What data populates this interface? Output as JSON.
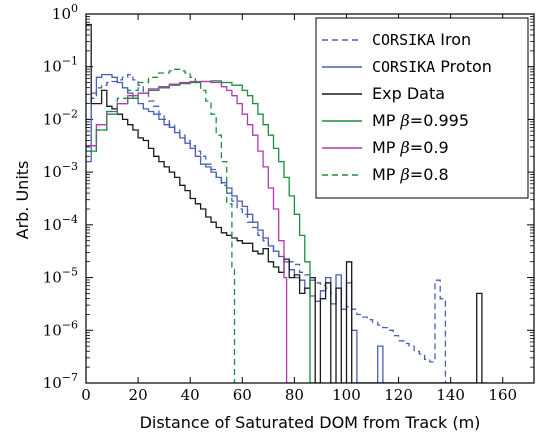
{
  "chart_data": {
    "type": "line",
    "xlabel": "Distance of Saturated DOM from Track (m)",
    "ylabel": "Arb. Units",
    "xlim": [
      0,
      172
    ],
    "ylim_log10": [
      -7,
      0
    ],
    "x_ticks": [
      {
        "value": 0,
        "label": "0"
      },
      {
        "value": 20,
        "label": "20"
      },
      {
        "value": 40,
        "label": "40"
      },
      {
        "value": 60,
        "label": "60"
      },
      {
        "value": 80,
        "label": "80"
      },
      {
        "value": 100,
        "label": "100"
      },
      {
        "value": 120,
        "label": "120"
      },
      {
        "value": 140,
        "label": "140"
      },
      {
        "value": 160,
        "label": "160"
      }
    ],
    "y_ticks": [
      {
        "value": 0,
        "base": "10",
        "exp": "0"
      },
      {
        "value": -1,
        "base": "10",
        "exp": "−1"
      },
      {
        "value": -2,
        "base": "10",
        "exp": "−2"
      },
      {
        "value": -3,
        "base": "10",
        "exp": "−3"
      },
      {
        "value": -4,
        "base": "10",
        "exp": "−4"
      },
      {
        "value": -5,
        "base": "10",
        "exp": "−5"
      },
      {
        "value": -6,
        "base": "10",
        "exp": "−6"
      },
      {
        "value": -7,
        "base": "10",
        "exp": "−7"
      }
    ],
    "legend_position": "top-right",
    "series": [
      {
        "name_mono": "CORSIKA",
        "name_rest": " Iron",
        "color": "#4a5fb4",
        "dash": "dashed",
        "points": [
          [
            0,
            -2.5
          ],
          [
            2,
            -1.6
          ],
          [
            4,
            -1.4
          ],
          [
            6,
            -1.35
          ],
          [
            8,
            -1.3
          ],
          [
            10,
            -1.28
          ],
          [
            12,
            -1.25
          ],
          [
            14,
            -1.2
          ],
          [
            16,
            -1.15
          ],
          [
            18,
            -1.25
          ],
          [
            20,
            -1.35
          ],
          [
            22,
            -1.5
          ],
          [
            24,
            -1.65
          ],
          [
            26,
            -1.75
          ],
          [
            28,
            -1.9
          ],
          [
            30,
            -2.0
          ],
          [
            32,
            -2.1
          ],
          [
            34,
            -2.2
          ],
          [
            36,
            -2.3
          ],
          [
            38,
            -2.4
          ],
          [
            40,
            -2.5
          ],
          [
            42,
            -2.6
          ],
          [
            44,
            -2.7
          ],
          [
            46,
            -2.85
          ],
          [
            48,
            -2.95
          ],
          [
            50,
            -3.1
          ],
          [
            52,
            -3.25
          ],
          [
            54,
            -3.4
          ],
          [
            56,
            -3.55
          ],
          [
            58,
            -3.7
          ],
          [
            60,
            -3.8
          ],
          [
            62,
            -3.95
          ],
          [
            64,
            -4.05
          ],
          [
            66,
            -4.2
          ],
          [
            68,
            -4.3
          ],
          [
            70,
            -4.4
          ],
          [
            72,
            -4.5
          ],
          [
            74,
            -4.6
          ],
          [
            76,
            -4.65
          ],
          [
            78,
            -4.7
          ],
          [
            80,
            -4.75
          ],
          [
            82,
            -4.9
          ],
          [
            84,
            -4.95
          ],
          [
            86,
            -5.05
          ],
          [
            88,
            -5.1
          ],
          [
            90,
            -5.15
          ],
          [
            92,
            -5.2
          ],
          [
            94,
            -5.3
          ],
          [
            96,
            -5.4
          ],
          [
            98,
            -5.5
          ],
          [
            100,
            -5.55
          ],
          [
            102,
            -5.6
          ],
          [
            104,
            -5.7
          ],
          [
            106,
            -5.75
          ],
          [
            108,
            -5.8
          ],
          [
            110,
            -5.85
          ],
          [
            112,
            -5.9
          ],
          [
            114,
            -5.95
          ],
          [
            116,
            -6.0
          ],
          [
            118,
            -6.1
          ],
          [
            120,
            -6.2
          ],
          [
            122,
            -6.25
          ],
          [
            124,
            -6.3
          ],
          [
            126,
            -6.4
          ],
          [
            128,
            -6.45
          ],
          [
            130,
            -6.55
          ],
          [
            132,
            -6.6
          ],
          [
            134,
            -5.05
          ],
          [
            136,
            -5.4
          ],
          [
            138,
            -7.0
          ]
        ]
      },
      {
        "name_mono": "CORSIKA",
        "name_rest": " Proton",
        "color": "#4a5fb4",
        "dash": "solid",
        "points": [
          [
            0,
            -2.8
          ],
          [
            2,
            -1.5
          ],
          [
            4,
            -1.2
          ],
          [
            6,
            -1.15
          ],
          [
            8,
            -1.15
          ],
          [
            10,
            -1.2
          ],
          [
            12,
            -1.3
          ],
          [
            14,
            -1.4
          ],
          [
            16,
            -1.5
          ],
          [
            18,
            -1.6
          ],
          [
            20,
            -1.7
          ],
          [
            22,
            -1.8
          ],
          [
            24,
            -1.85
          ],
          [
            26,
            -1.9
          ],
          [
            28,
            -2.0
          ],
          [
            30,
            -2.1
          ],
          [
            32,
            -2.15
          ],
          [
            34,
            -2.25
          ],
          [
            36,
            -2.35
          ],
          [
            38,
            -2.45
          ],
          [
            40,
            -2.55
          ],
          [
            42,
            -2.7
          ],
          [
            44,
            -2.85
          ],
          [
            46,
            -2.9
          ],
          [
            48,
            -3.0
          ],
          [
            50,
            -3.1
          ],
          [
            52,
            -3.2
          ],
          [
            54,
            -3.3
          ],
          [
            56,
            -3.45
          ],
          [
            58,
            -3.55
          ],
          [
            60,
            -3.65
          ],
          [
            62,
            -3.8
          ],
          [
            64,
            -3.95
          ],
          [
            66,
            -4.1
          ],
          [
            68,
            -4.25
          ],
          [
            70,
            -4.4
          ],
          [
            72,
            -4.5
          ],
          [
            74,
            -4.6
          ],
          [
            76,
            -4.7
          ],
          [
            78,
            -4.85
          ],
          [
            80,
            -5.0
          ],
          [
            82,
            -5.05
          ],
          [
            84,
            -5.2
          ],
          [
            86,
            -5.35
          ],
          [
            88,
            -5.45
          ],
          [
            90,
            -5.25
          ],
          [
            92,
            -5.0
          ],
          [
            94,
            -5.5
          ],
          [
            96,
            -4.95
          ],
          [
            98,
            -5.6
          ],
          [
            100,
            -5.1
          ],
          [
            102,
            -6.0
          ],
          [
            104,
            -7.0
          ],
          [
            110,
            -7.0
          ],
          [
            112,
            -6.3
          ],
          [
            114,
            -7.0
          ]
        ]
      },
      {
        "name_mono": "",
        "name_rest": "Exp Data",
        "color": "#1a1a1a",
        "dash": "solid",
        "points": [
          [
            0,
            -0.2
          ],
          [
            2,
            -1.7
          ],
          [
            4,
            -1.7
          ],
          [
            6,
            -1.45
          ],
          [
            8,
            -1.75
          ],
          [
            10,
            -1.8
          ],
          [
            12,
            -1.9
          ],
          [
            14,
            -2.0
          ],
          [
            16,
            -2.1
          ],
          [
            18,
            -2.2
          ],
          [
            20,
            -2.35
          ],
          [
            22,
            -2.4
          ],
          [
            24,
            -2.55
          ],
          [
            26,
            -2.7
          ],
          [
            28,
            -2.8
          ],
          [
            30,
            -2.9
          ],
          [
            32,
            -3.0
          ],
          [
            34,
            -3.1
          ],
          [
            36,
            -3.25
          ],
          [
            38,
            -3.35
          ],
          [
            40,
            -3.5
          ],
          [
            42,
            -3.6
          ],
          [
            44,
            -3.7
          ],
          [
            46,
            -3.85
          ],
          [
            48,
            -3.95
          ],
          [
            50,
            -4.05
          ],
          [
            52,
            -4.15
          ],
          [
            54,
            -4.2
          ],
          [
            56,
            -4.25
          ],
          [
            58,
            -4.3
          ],
          [
            60,
            -4.35
          ],
          [
            62,
            -4.35
          ],
          [
            64,
            -4.5
          ],
          [
            66,
            -4.55
          ],
          [
            68,
            -4.45
          ],
          [
            70,
            -4.7
          ],
          [
            72,
            -4.8
          ],
          [
            74,
            -4.9
          ],
          [
            76,
            -4.65
          ],
          [
            78,
            -5.0
          ],
          [
            80,
            -4.95
          ],
          [
            82,
            -5.3
          ],
          [
            84,
            -5.2
          ],
          [
            86,
            -5.0
          ],
          [
            88,
            -7.0
          ],
          [
            90,
            -5.4
          ],
          [
            92,
            -5.1
          ],
          [
            94,
            -7.0
          ],
          [
            96,
            -5.2
          ],
          [
            98,
            -7.0
          ],
          [
            100,
            -4.7
          ],
          [
            102,
            -7.0
          ],
          [
            148,
            -7.0
          ],
          [
            150,
            -5.3
          ],
          [
            152,
            -7.0
          ]
        ]
      },
      {
        "name_mono": "",
        "name_rest": "MP ",
        "name_beta": "β",
        "name_tail": "=0.995",
        "color": "#1e8c3e",
        "dash": "solid",
        "points": [
          [
            0,
            -2.6
          ],
          [
            4,
            -2.2
          ],
          [
            8,
            -1.9
          ],
          [
            12,
            -1.7
          ],
          [
            16,
            -1.6
          ],
          [
            20,
            -1.5
          ],
          [
            24,
            -1.45
          ],
          [
            28,
            -1.4
          ],
          [
            32,
            -1.35
          ],
          [
            36,
            -1.32
          ],
          [
            40,
            -1.3
          ],
          [
            44,
            -1.28
          ],
          [
            48,
            -1.27
          ],
          [
            52,
            -1.3
          ],
          [
            56,
            -1.35
          ],
          [
            60,
            -1.45
          ],
          [
            62,
            -1.55
          ],
          [
            64,
            -1.7
          ],
          [
            66,
            -1.9
          ],
          [
            68,
            -2.1
          ],
          [
            70,
            -2.3
          ],
          [
            72,
            -2.55
          ],
          [
            74,
            -2.8
          ],
          [
            76,
            -3.1
          ],
          [
            78,
            -3.45
          ],
          [
            80,
            -3.8
          ],
          [
            82,
            -4.2
          ],
          [
            84,
            -4.7
          ],
          [
            86,
            -7.0
          ]
        ]
      },
      {
        "name_mono": "",
        "name_rest": "MP ",
        "name_beta": "β",
        "name_tail": "=0.9",
        "color": "#b03ab0",
        "dash": "solid",
        "points": [
          [
            0,
            -2.5
          ],
          [
            4,
            -2.1
          ],
          [
            8,
            -1.85
          ],
          [
            12,
            -1.7
          ],
          [
            16,
            -1.55
          ],
          [
            20,
            -1.5
          ],
          [
            24,
            -1.42
          ],
          [
            28,
            -1.38
          ],
          [
            32,
            -1.33
          ],
          [
            36,
            -1.3
          ],
          [
            40,
            -1.28
          ],
          [
            44,
            -1.28
          ],
          [
            48,
            -1.3
          ],
          [
            52,
            -1.38
          ],
          [
            54,
            -1.45
          ],
          [
            56,
            -1.55
          ],
          [
            58,
            -1.7
          ],
          [
            60,
            -1.9
          ],
          [
            62,
            -2.1
          ],
          [
            64,
            -2.3
          ],
          [
            66,
            -2.6
          ],
          [
            68,
            -2.9
          ],
          [
            70,
            -3.3
          ],
          [
            72,
            -3.7
          ],
          [
            74,
            -4.3
          ],
          [
            76,
            -5.0
          ],
          [
            77,
            -7.0
          ]
        ]
      },
      {
        "name_mono": "",
        "name_rest": "MP ",
        "name_beta": "β",
        "name_tail": "=0.8",
        "color": "#1e8c3e",
        "dash": "dashed",
        "points": [
          [
            0,
            -2.6
          ],
          [
            4,
            -2.2
          ],
          [
            8,
            -1.85
          ],
          [
            12,
            -1.6
          ],
          [
            16,
            -1.45
          ],
          [
            20,
            -1.3
          ],
          [
            24,
            -1.2
          ],
          [
            28,
            -1.12
          ],
          [
            32,
            -1.08
          ],
          [
            34,
            -1.05
          ],
          [
            36,
            -1.08
          ],
          [
            38,
            -1.12
          ],
          [
            40,
            -1.2
          ],
          [
            42,
            -1.3
          ],
          [
            44,
            -1.45
          ],
          [
            46,
            -1.65
          ],
          [
            48,
            -1.9
          ],
          [
            50,
            -2.3
          ],
          [
            52,
            -2.8
          ],
          [
            54,
            -3.6
          ],
          [
            56,
            -4.8
          ],
          [
            57,
            -7.0
          ]
        ]
      }
    ]
  }
}
